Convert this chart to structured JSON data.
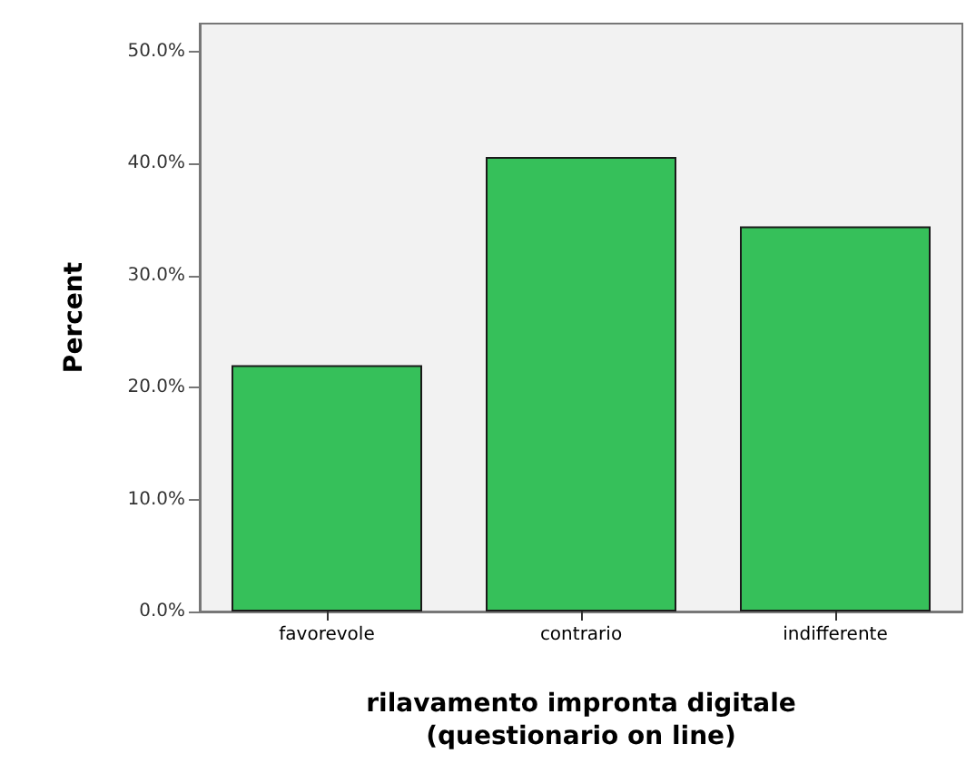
{
  "chart_data": {
    "type": "bar",
    "xlabel": "rilavamento impronta digitale\n(questionario on line)",
    "ylabel": "Percent",
    "categories": [
      "favorevole",
      "contrario",
      "indifferente"
    ],
    "values": [
      22.0,
      40.6,
      34.4
    ],
    "color": "#36c05a",
    "ylim": [
      0,
      52.5
    ],
    "yticks": [
      {
        "value": 0,
        "label": "0.0%"
      },
      {
        "value": 10,
        "label": "10.0%"
      },
      {
        "value": 20,
        "label": "20.0%"
      },
      {
        "value": 30,
        "label": "30.0%"
      },
      {
        "value": 40,
        "label": "40.0%"
      },
      {
        "value": 50,
        "label": "50.0%"
      }
    ],
    "grid": false
  }
}
